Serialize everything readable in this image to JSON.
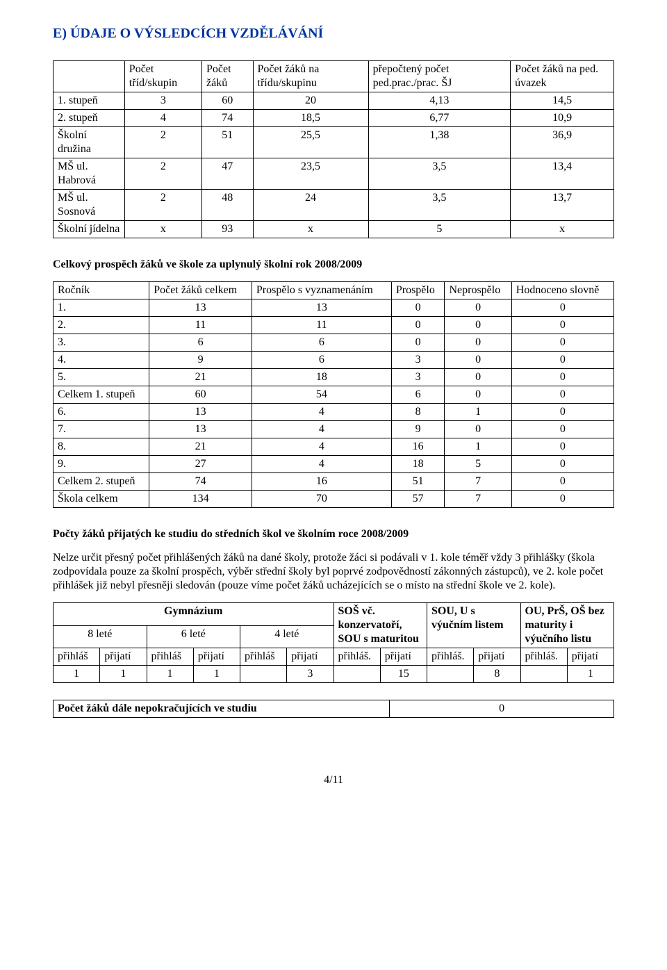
{
  "title": "E) ÚDAJE  O VÝSLEDCÍCH VZDĚLÁVÁNÍ",
  "tableA": {
    "headers": [
      "",
      "Počet tříd/skupin",
      "Počet žáků",
      "Počet žáků na třídu/skupinu",
      "přepočtený počet ped.prac./prac. ŠJ",
      "Počet žáků na ped. úvazek"
    ],
    "rows": [
      [
        "1. stupeň",
        "3",
        "60",
        "20",
        "4,13",
        "14,5"
      ],
      [
        "2. stupeň",
        "4",
        "74",
        "18,5",
        "6,77",
        "10,9"
      ],
      [
        "Školní družina",
        "2",
        "51",
        "25,5",
        "1,38",
        "36,9"
      ],
      [
        "MŠ ul. Habrová",
        "2",
        "47",
        "23,5",
        "3,5",
        "13,4"
      ],
      [
        "MŠ ul. Sosnová",
        "2",
        "48",
        "24",
        "3,5",
        "13,7"
      ],
      [
        "Školní jídelna",
        "x",
        "93",
        "x",
        "5",
        "x"
      ]
    ]
  },
  "sectionB_title": "Celkový prospěch žáků ve škole za uplynulý školní rok 2008/2009",
  "tableB": {
    "headers": [
      "Ročník",
      "Počet žáků celkem",
      "Prospělo s vyznamenáním",
      "Prospělo",
      "Neprospělo",
      "Hodnoceno slovně"
    ],
    "rows": [
      [
        "1.",
        "13",
        "13",
        "0",
        "0",
        "0"
      ],
      [
        "2.",
        "11",
        "11",
        "0",
        "0",
        "0"
      ],
      [
        "3.",
        "6",
        "6",
        "0",
        "0",
        "0"
      ],
      [
        "4.",
        "9",
        "6",
        "3",
        "0",
        "0"
      ],
      [
        "5.",
        "21",
        "18",
        "3",
        "0",
        "0"
      ],
      [
        "Celkem 1. stupeň",
        "60",
        "54",
        "6",
        "0",
        "0"
      ],
      [
        "6.",
        "13",
        "4",
        "8",
        "1",
        "0"
      ],
      [
        "7.",
        "13",
        "4",
        "9",
        "0",
        "0"
      ],
      [
        "8.",
        "21",
        "4",
        "16",
        "1",
        "0"
      ],
      [
        "9.",
        "27",
        "4",
        "18",
        "5",
        "0"
      ],
      [
        "Celkem 2. stupeň",
        "74",
        "16",
        "51",
        "7",
        "0"
      ],
      [
        "Škola celkem",
        "134",
        "70",
        "57",
        "7",
        "0"
      ]
    ],
    "bold_rows": [
      5,
      10,
      11
    ]
  },
  "sectionC_title": "Počty žáků přijatých ke studiu do středních škol ve školním roce 2008/2009",
  "paragraphC": "Nelze určit přesný počet přihlášených žáků na dané školy, protože žáci si podávali v 1. kole téměř vždy 3 přihlášky (škola zodpovídala pouze za školní prospěch, výběr střední školy byl poprvé zodpovědností zákonných zástupců), ve 2. kole počet přihlášek již nebyl přesněji sledován (pouze víme počet žáků ucházejících se o místo na střední škole ve 2. kole).",
  "tableC": {
    "top": {
      "gymnazium": "Gymnázium",
      "leta": [
        "8 leté",
        "6 leté",
        "4 leté"
      ],
      "sos": "SOŠ vč. konzervatoří, SOU s maturitou",
      "sou": "SOU, U s výučním listem",
      "ou": "OU, PrŠ, OŠ bez maturity i výučního listu"
    },
    "sub": {
      "prihlas": "přihláš",
      "prijati": "přijatí",
      "prihlas2": "přihláš.",
      "prijati2": "přijatí"
    },
    "values": [
      "1",
      "1",
      "1",
      "1",
      "",
      "3",
      "",
      "15",
      "",
      "8",
      "",
      "1"
    ]
  },
  "tableD": {
    "label": "Počet žáků dále nepokračujících ve studiu",
    "value": "0"
  },
  "footer": "4/11"
}
